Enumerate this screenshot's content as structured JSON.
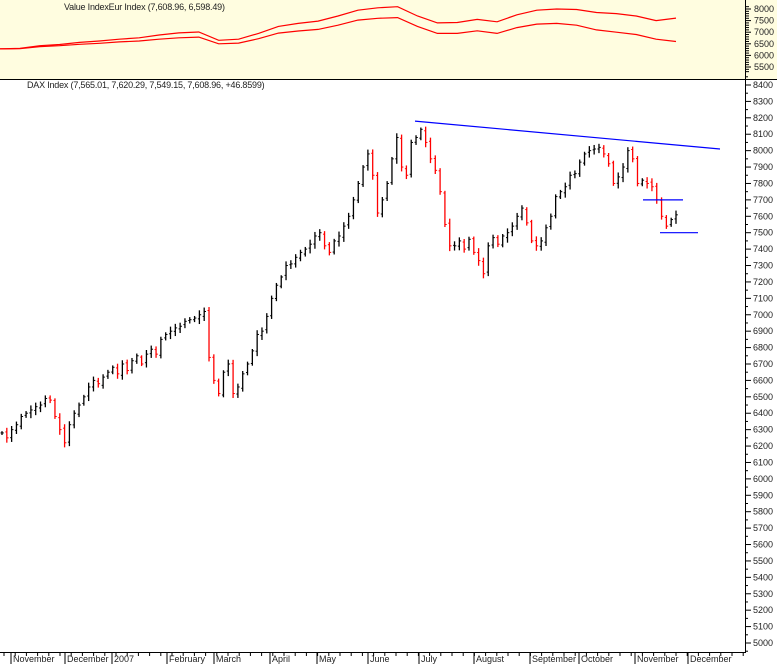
{
  "chart_data": [
    {
      "type": "line",
      "title": "Value IndexEur Index (7,608.96, 6,598.49)",
      "yticks": [
        5500,
        6000,
        6500,
        7000,
        7500,
        8000
      ],
      "ylim": [
        5300,
        8150
      ],
      "colors": {
        "line": "#ff0000",
        "background": "#fffde0"
      },
      "series": [
        {
          "values": [
            6280,
            6300,
            6420,
            6470,
            6560,
            6620,
            6700,
            6760,
            6880,
            6970,
            7010,
            6650,
            6700,
            6950,
            7250,
            7380,
            7480,
            7700,
            7950,
            8050,
            8100,
            7700,
            7400,
            7420,
            7550,
            7450,
            7750,
            7950,
            8000,
            7980,
            7850,
            7800,
            7700,
            7500,
            7609
          ]
        },
        {
          "values": [
            6280,
            6290,
            6380,
            6420,
            6480,
            6520,
            6580,
            6620,
            6700,
            6760,
            6790,
            6500,
            6530,
            6720,
            6960,
            7050,
            7120,
            7300,
            7520,
            7600,
            7630,
            7250,
            6950,
            6950,
            7060,
            6950,
            7200,
            7350,
            7380,
            7300,
            7100,
            7000,
            6900,
            6700,
            6598
          ]
        }
      ]
    },
    {
      "type": "ohlc",
      "title": "DAX Index (7,565.01, 7,620.29, 7,549.15, 7,608.96, +46.8599)",
      "ylim": [
        4950,
        8450
      ],
      "yticks": [
        5000,
        5100,
        5200,
        5300,
        5400,
        5500,
        5600,
        5700,
        5800,
        5900,
        6000,
        6100,
        6200,
        6300,
        6400,
        6500,
        6600,
        6700,
        6800,
        6900,
        7000,
        7100,
        7200,
        7300,
        7400,
        7500,
        7600,
        7700,
        7800,
        7900,
        8000,
        8100,
        8200,
        8300,
        8400
      ],
      "xticks": [
        "November",
        "December",
        "2007",
        "February",
        "March",
        "April",
        "May",
        "June",
        "July",
        "August",
        "September",
        "October",
        "November",
        "December"
      ],
      "colors": {
        "up": "#000000",
        "down": "#ff0000",
        "annotation": "#0000ff"
      },
      "grid": false,
      "close": [
        6280,
        6250,
        6300,
        6330,
        6380,
        6400,
        6420,
        6440,
        6450,
        6490,
        6480,
        6380,
        6300,
        6220,
        6330,
        6400,
        6450,
        6500,
        6560,
        6600,
        6580,
        6620,
        6650,
        6680,
        6640,
        6700,
        6660,
        6720,
        6750,
        6700,
        6760,
        6790,
        6760,
        6850,
        6880,
        6900,
        6920,
        6930,
        6960,
        6970,
        6980,
        7000,
        7020,
        6740,
        6600,
        6520,
        6650,
        6700,
        6520,
        6560,
        6640,
        6700,
        6780,
        6880,
        6900,
        6990,
        7100,
        7180,
        7230,
        7300,
        7310,
        7350,
        7380,
        7400,
        7430,
        7480,
        7500,
        7420,
        7380,
        7450,
        7480,
        7540,
        7600,
        7700,
        7800,
        7900,
        7980,
        7850,
        7620,
        7700,
        7800,
        7950,
        8080,
        7900,
        7850,
        8050,
        8080,
        8130,
        8050,
        7950,
        7880,
        7750,
        7550,
        7420,
        7420,
        7450,
        7400,
        7460,
        7380,
        7330,
        7250,
        7420,
        7470,
        7430,
        7480,
        7500,
        7540,
        7600,
        7650,
        7560,
        7450,
        7420,
        7450,
        7530,
        7600,
        7720,
        7750,
        7780,
        7850,
        7860,
        7930,
        7980,
        8000,
        8010,
        8020,
        7980,
        7920,
        7800,
        7840,
        7900,
        8000,
        7950,
        7800,
        7820,
        7800,
        7780,
        7700,
        7600,
        7540,
        7580,
        7609
      ],
      "annotations": {
        "trendline": [
          8180,
          8010
        ],
        "support_levels": [
          7700,
          7500
        ]
      }
    }
  ]
}
